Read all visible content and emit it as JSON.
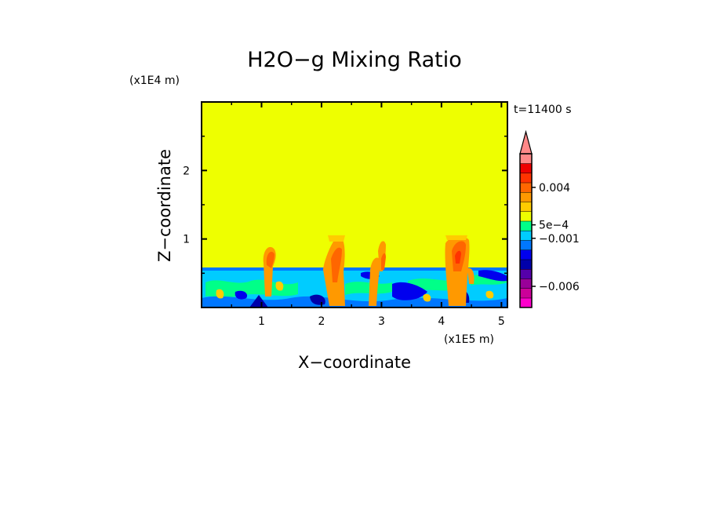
{
  "chart_data": {
    "type": "heatmap",
    "title": "H2O−g Mixing Ratio",
    "xlabel": "X−coordinate",
    "ylabel": "Z−coordinate",
    "x_unit": "(x1E5 m)",
    "y_unit": "(x1E4 m)",
    "time_label": "t=11400 s",
    "xlim": [
      0,
      5.1
    ],
    "ylim": [
      0,
      3.0
    ],
    "x_ticks": [
      1,
      2,
      3,
      4,
      5
    ],
    "y_ticks": [
      1,
      2
    ],
    "background_value_color": "#eeff00",
    "layer_top_z": 0.58,
    "convective_columns_x": [
      1.1,
      2.2,
      2.3,
      2.9,
      3.0,
      4.2,
      4.35
    ],
    "colorbar": {
      "levels_colors": [
        "#ff00cc",
        "#cc0099",
        "#990099",
        "#5500aa",
        "#0000aa",
        "#0000ee",
        "#0077ff",
        "#00ccff",
        "#00ff88",
        "#eeff00",
        "#ffcc00",
        "#ff9900",
        "#ff6600",
        "#ff3300",
        "#ee0000",
        "#ff8888"
      ],
      "labels": [
        {
          "text": "−0.006",
          "level": 2.2
        },
        {
          "text": "−0.001",
          "level": 7.2
        },
        {
          "text": "5e−4",
          "level": 8.6
        },
        {
          "text": "0.004",
          "level": 12.5
        }
      ]
    }
  }
}
